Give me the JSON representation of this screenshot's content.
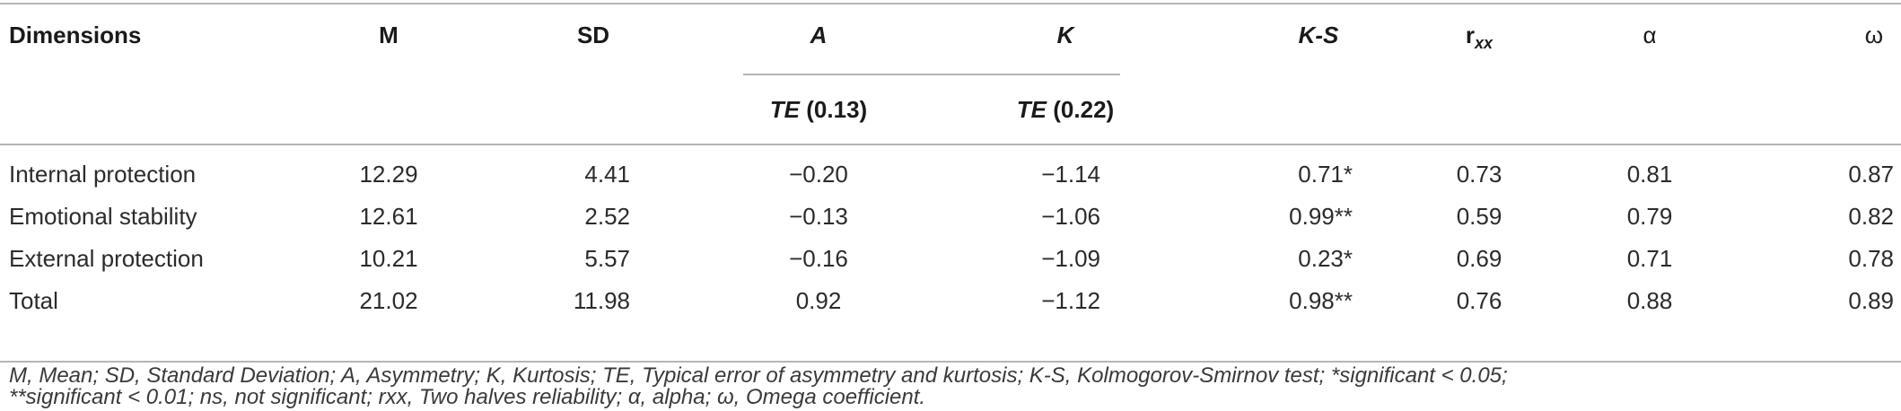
{
  "table": {
    "headers": {
      "dimensions": "Dimensions",
      "m": "M",
      "sd": "SD",
      "a": "A",
      "k": "K",
      "ks": "K-S",
      "rxx_base": "r",
      "rxx_sub": "xx",
      "alpha": "α",
      "omega": "ω",
      "te_a_label": "TE",
      "te_a_value": "(0.13)",
      "te_k_label": "TE",
      "te_k_value": "(0.22)"
    },
    "rows": [
      {
        "dimension": "Internal protection",
        "m": "12.29",
        "sd": "4.41",
        "a": "−0.20",
        "k": "−1.14",
        "ks": "0.71*",
        "rxx": "0.73",
        "alpha": "0.81",
        "omega": "0.87"
      },
      {
        "dimension": "Emotional stability",
        "m": "12.61",
        "sd": "2.52",
        "a": "−0.13",
        "k": "−1.06",
        "ks": "0.99**",
        "rxx": "0.59",
        "alpha": "0.79",
        "omega": "0.82"
      },
      {
        "dimension": "External protection",
        "m": "10.21",
        "sd": "5.57",
        "a": "−0.16",
        "k": "−1.09",
        "ks": "0.23*",
        "rxx": "0.69",
        "alpha": "0.71",
        "omega": "0.78"
      },
      {
        "dimension": "Total",
        "m": "21.02",
        "sd": "11.98",
        "a": "0.92",
        "k": "−1.12",
        "ks": "0.98**",
        "rxx": "0.76",
        "alpha": "0.88",
        "omega": "0.89"
      }
    ]
  },
  "footnote": {
    "line1": "M, Mean; SD, Standard Deviation; A, Asymmetry; K, Kurtosis; TE, Typical error of asymmetry and kurtosis; K-S, Kolmogorov-Smirnov test; *significant < 0.05;",
    "line2": "**significant < 0.01; ns, not significant; rxx, Two halves reliability; α, alpha; ω, Omega coefficient."
  }
}
